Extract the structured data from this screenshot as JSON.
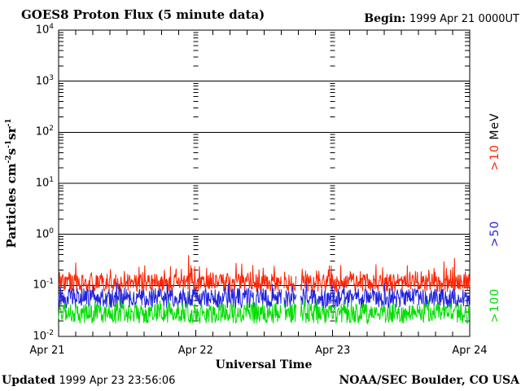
{
  "title": "GOES8 Proton Flux (5 minute data)",
  "begin": {
    "label": "Begin:",
    "value": "1999 Apr 21 0000UT"
  },
  "footer": {
    "updated_label": "Updated",
    "updated_value": "1999 Apr 23 23:56:06",
    "credit": "NOAA/SEC Boulder, CO USA"
  },
  "chart_data": {
    "type": "line",
    "title": "GOES8 Proton Flux (5 minute data)",
    "xlabel": "Universal Time",
    "ylabel_parts": [
      {
        "t": "Particles cm"
      },
      {
        "t": "-2",
        "sup": true
      },
      {
        "t": "s"
      },
      {
        "t": "-1",
        "sup": true
      },
      {
        "t": "sr"
      },
      {
        "t": "-1",
        "sup": true
      }
    ],
    "x_tick_labels": [
      "Apr 21",
      "Apr 22",
      "Apr 23",
      "Apr 24"
    ],
    "y_tick_exponents": [
      4,
      3,
      2,
      1,
      0,
      -1,
      -2
    ],
    "ylim": [
      0.01,
      10000
    ],
    "x_span_days": 3,
    "cadence_minutes": 5,
    "minor_tick_hours": 3,
    "grid": {
      "horizontal_decade_lines": true,
      "day_boundary_dotted_lines": true
    },
    "units_label": "MeV",
    "legend_position": "right-rotated",
    "axis_color": "#000000",
    "series": [
      {
        "name": ">10 MeV",
        "label": ">10",
        "color": "#ff2200",
        "typical_value": 0.11,
        "band_min": 0.066,
        "band_max": 0.17,
        "spike_max": 0.45,
        "log10_center": -0.95,
        "log10_noise": 0.18,
        "spike_prob": 0.12,
        "spike_mag": 0.28,
        "big_spike_prob": 0.015,
        "big_spike_mag": 0.25,
        "log10_min": -1.18,
        "log10_max": -0.33
      },
      {
        "name": ">50 MeV",
        "label": ">50",
        "color": "#2222dd",
        "typical_value": 0.056,
        "band_min": 0.022,
        "band_max": 0.1,
        "spike_max": 0.112,
        "log10_center": -1.25,
        "log10_noise": 0.2,
        "spike_prob": 0.08,
        "spike_mag": 0.2,
        "big_spike_prob": 0.0,
        "big_spike_mag": 0.0,
        "log10_min": -1.65,
        "log10_max": -0.95
      },
      {
        "name": ">100 MeV",
        "label": ">100",
        "color": "#00dd00",
        "typical_value": 0.028,
        "band_min": 0.012,
        "band_max": 0.05,
        "spike_max": 0.052,
        "log10_center": -1.55,
        "log10_noise": 0.2,
        "spike_prob": 0.08,
        "spike_mag": 0.2,
        "big_spike_prob": 0.0,
        "big_spike_mag": 0.0,
        "log10_min": -1.92,
        "log10_max": -1.28
      }
    ],
    "data_gaps": [
      {
        "start_day": 1.628,
        "end_day": 1.645
      },
      {
        "start_day": 1.735,
        "end_day": 1.764
      }
    ]
  }
}
